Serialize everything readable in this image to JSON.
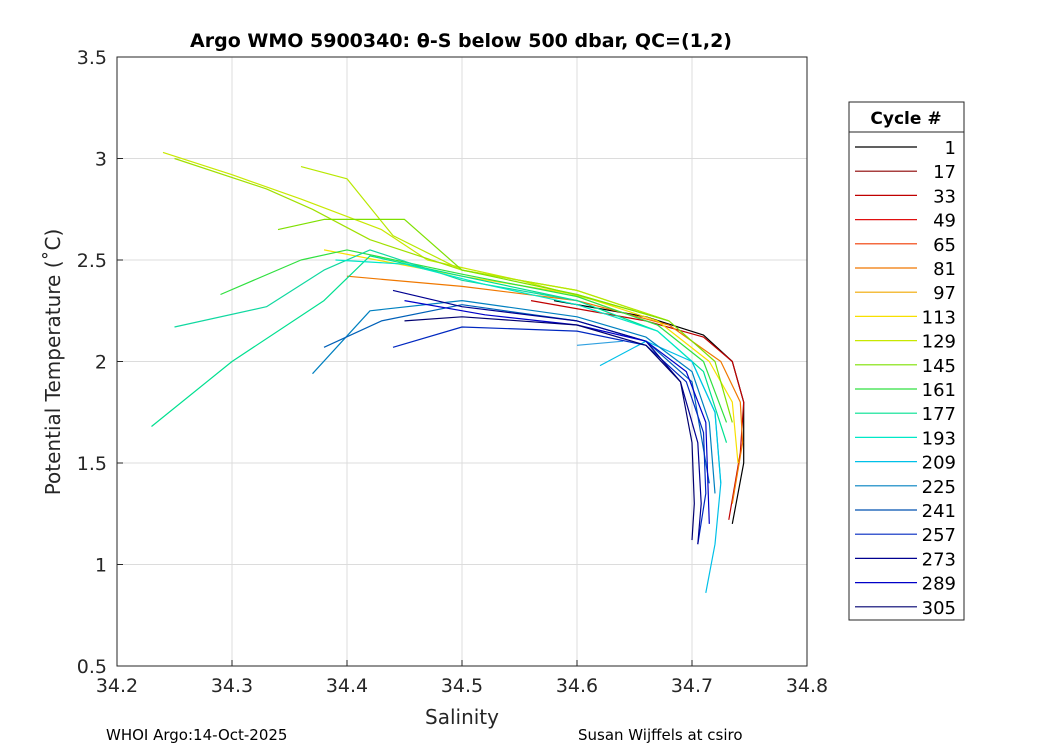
{
  "chart_data": {
    "type": "line",
    "title": "Argo WMO 5900340: θ-S below 500 dbar,  QC=(1,2)",
    "xlabel": "Salinity",
    "ylabel": "Potential Temperature (˚C)",
    "xlim": [
      34.2,
      34.8
    ],
    "ylim": [
      0.5,
      3.5
    ],
    "xticks": [
      "34.2",
      "34.3",
      "34.4",
      "34.5",
      "34.6",
      "34.7",
      "34.8"
    ],
    "yticks": [
      "0.5",
      "1",
      "1.5",
      "2",
      "2.5",
      "3",
      "3.5"
    ],
    "grid": true,
    "legend": {
      "title": "Cycle #",
      "placement": "outside-right",
      "entries": [
        {
          "label": "1",
          "color": "#000000"
        },
        {
          "label": "17",
          "color": "#8b0000"
        },
        {
          "label": "33",
          "color": "#c00000"
        },
        {
          "label": "49",
          "color": "#e01010"
        },
        {
          "label": "65",
          "color": "#f03a00"
        },
        {
          "label": "81",
          "color": "#f07800"
        },
        {
          "label": "97",
          "color": "#f0a800"
        },
        {
          "label": "113",
          "color": "#f8e000"
        },
        {
          "label": "129",
          "color": "#c8e800"
        },
        {
          "label": "145",
          "color": "#7ee000"
        },
        {
          "label": "161",
          "color": "#30e040"
        },
        {
          "label": "177",
          "color": "#00e090"
        },
        {
          "label": "193",
          "color": "#00e8c8"
        },
        {
          "label": "209",
          "color": "#00c0e8"
        },
        {
          "label": "225",
          "color": "#0080c0"
        },
        {
          "label": "241",
          "color": "#0050b0"
        },
        {
          "label": "257",
          "color": "#0028c0"
        },
        {
          "label": "273",
          "color": "#000090"
        },
        {
          "label": "289",
          "color": "#0000c8"
        },
        {
          "label": "305",
          "color": "#000070"
        }
      ]
    },
    "series": [
      {
        "color": "#000000",
        "x": [
          34.58,
          34.66,
          34.71,
          34.735,
          34.745,
          34.745,
          34.735
        ],
        "y": [
          2.3,
          2.22,
          2.13,
          2.0,
          1.8,
          1.5,
          1.2
        ]
      },
      {
        "color": "#c00000",
        "x": [
          34.56,
          34.66,
          34.71,
          34.735,
          34.745,
          34.742,
          34.732
        ],
        "y": [
          2.3,
          2.2,
          2.12,
          2.0,
          1.8,
          1.55,
          1.22
        ]
      },
      {
        "color": "#f07800",
        "x": [
          34.4,
          34.5,
          34.6,
          34.68,
          34.725,
          34.742,
          34.744,
          34.735
        ],
        "y": [
          2.42,
          2.37,
          2.3,
          2.18,
          2.0,
          1.8,
          1.6,
          1.3
        ]
      },
      {
        "color": "#f8e000",
        "x": [
          34.38,
          34.5,
          34.6,
          34.67,
          34.715,
          34.735,
          34.74
        ],
        "y": [
          2.55,
          2.42,
          2.33,
          2.2,
          2.0,
          1.8,
          1.5
        ]
      },
      {
        "color": "#c8e800",
        "x": [
          34.24,
          34.3,
          34.36,
          34.43,
          34.47,
          34.55,
          34.65
        ],
        "y": [
          3.03,
          2.92,
          2.8,
          2.65,
          2.5,
          2.4,
          2.25
        ]
      },
      {
        "color": "#a0e000",
        "x": [
          34.25,
          34.33,
          34.37,
          34.42,
          34.5,
          34.6,
          34.68
        ],
        "y": [
          3.0,
          2.85,
          2.75,
          2.6,
          2.45,
          2.35,
          2.2
        ]
      },
      {
        "color": "#b8e800",
        "x": [
          34.36,
          34.4,
          34.44,
          34.5,
          34.6,
          34.68
        ],
        "y": [
          2.96,
          2.9,
          2.62,
          2.45,
          2.35,
          2.2
        ]
      },
      {
        "color": "#7ee000",
        "x": [
          34.34,
          34.38,
          34.45,
          34.5,
          34.6,
          34.68,
          34.72,
          34.735
        ],
        "y": [
          2.65,
          2.7,
          2.7,
          2.45,
          2.33,
          2.2,
          2.0,
          1.7
        ]
      },
      {
        "color": "#30e040",
        "x": [
          34.29,
          34.36,
          34.4,
          34.5,
          34.6,
          34.67,
          34.71,
          34.73
        ],
        "y": [
          2.33,
          2.5,
          2.55,
          2.43,
          2.32,
          2.18,
          2.0,
          1.7
        ]
      },
      {
        "color": "#00e090",
        "x": [
          34.23,
          34.3,
          34.38,
          34.42,
          34.5,
          34.6,
          34.67,
          34.71,
          34.73
        ],
        "y": [
          1.68,
          2.0,
          2.3,
          2.52,
          2.42,
          2.3,
          2.15,
          1.95,
          1.6
        ]
      },
      {
        "color": "#10d8a0",
        "x": [
          34.25,
          34.33,
          34.38,
          34.42,
          34.5,
          34.6
        ],
        "y": [
          2.17,
          2.27,
          2.45,
          2.55,
          2.4,
          2.3
        ]
      },
      {
        "color": "#00e8c8",
        "x": [
          34.39,
          34.45,
          34.52,
          34.6,
          34.67,
          34.7,
          34.72,
          34.725
        ],
        "y": [
          2.5,
          2.48,
          2.38,
          2.28,
          2.15,
          2.0,
          1.75,
          1.4
        ]
      },
      {
        "color": "#00c0e8",
        "x": [
          34.62,
          34.66,
          34.7,
          34.72,
          34.725,
          34.72,
          34.712
        ],
        "y": [
          1.98,
          2.1,
          2.0,
          1.75,
          1.4,
          1.1,
          0.86
        ]
      },
      {
        "color": "#30a0e0",
        "x": [
          34.6,
          34.64
        ],
        "y": [
          2.08,
          2.1
        ]
      },
      {
        "color": "#0080c0",
        "x": [
          34.37,
          34.42,
          34.5,
          34.6,
          34.66,
          34.7,
          34.715,
          34.72
        ],
        "y": [
          1.94,
          2.25,
          2.3,
          2.22,
          2.12,
          1.95,
          1.7,
          1.35
        ]
      },
      {
        "color": "#0060b8",
        "x": [
          34.38,
          34.43,
          34.5,
          34.6,
          34.66,
          34.7,
          34.715
        ],
        "y": [
          2.07,
          2.2,
          2.28,
          2.2,
          2.1,
          1.9,
          1.4
        ]
      },
      {
        "color": "#0028c0",
        "x": [
          34.44,
          34.5,
          34.6,
          34.66,
          34.695,
          34.71,
          34.712,
          34.705
        ],
        "y": [
          2.07,
          2.17,
          2.15,
          2.08,
          1.9,
          1.65,
          1.35,
          1.1
        ]
      },
      {
        "color": "#000090",
        "x": [
          34.44,
          34.5,
          34.6,
          34.66,
          34.69,
          34.705,
          34.708,
          34.705
        ],
        "y": [
          2.35,
          2.27,
          2.2,
          2.1,
          1.9,
          1.6,
          1.3,
          1.1
        ]
      },
      {
        "color": "#0000c8",
        "x": [
          34.45,
          34.52,
          34.6,
          34.66,
          34.695,
          34.712,
          34.715
        ],
        "y": [
          2.3,
          2.23,
          2.18,
          2.1,
          1.95,
          1.7,
          1.2
        ]
      },
      {
        "color": "#000070",
        "x": [
          34.45,
          34.5,
          34.6,
          34.66,
          34.69,
          34.7,
          34.702,
          34.7
        ],
        "y": [
          2.2,
          2.22,
          2.18,
          2.08,
          1.9,
          1.6,
          1.3,
          1.12
        ]
      }
    ]
  },
  "footer": {
    "left": "WHOI Argo:14-Oct-2025",
    "right": "Susan Wijffels at csiro"
  }
}
